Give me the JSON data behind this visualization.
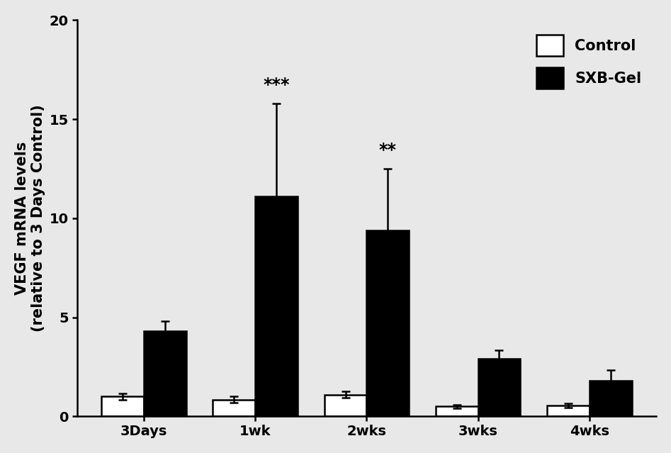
{
  "categories": [
    "3Days",
    "1wk",
    "2wks",
    "3wks",
    "4wks"
  ],
  "control_values": [
    1.0,
    0.85,
    1.1,
    0.5,
    0.55
  ],
  "control_errors": [
    0.15,
    0.15,
    0.15,
    0.1,
    0.1
  ],
  "sxb_values": [
    4.3,
    11.1,
    9.4,
    2.9,
    1.8
  ],
  "sxb_errors": [
    0.5,
    4.7,
    3.1,
    0.45,
    0.55
  ],
  "ylabel": "VEGF mRNA levels\n(relative to 3 Days Control)",
  "ylim": [
    0,
    20
  ],
  "yticks": [
    0,
    5,
    10,
    15,
    20
  ],
  "bar_width": 0.38,
  "control_color": "#ffffff",
  "sxb_color": "#000000",
  "edge_color": "#000000",
  "background_color": "#e8e8e8",
  "significance_labels": {
    "1wk": "***",
    "2wks": "**"
  },
  "legend_labels": [
    "Control",
    "SXB-Gel"
  ],
  "figure_width": 9.47,
  "figure_height": 6.39,
  "dpi": 100,
  "font_size": 15,
  "tick_font_size": 14,
  "sig_font_size": 17,
  "linewidth": 1.8
}
